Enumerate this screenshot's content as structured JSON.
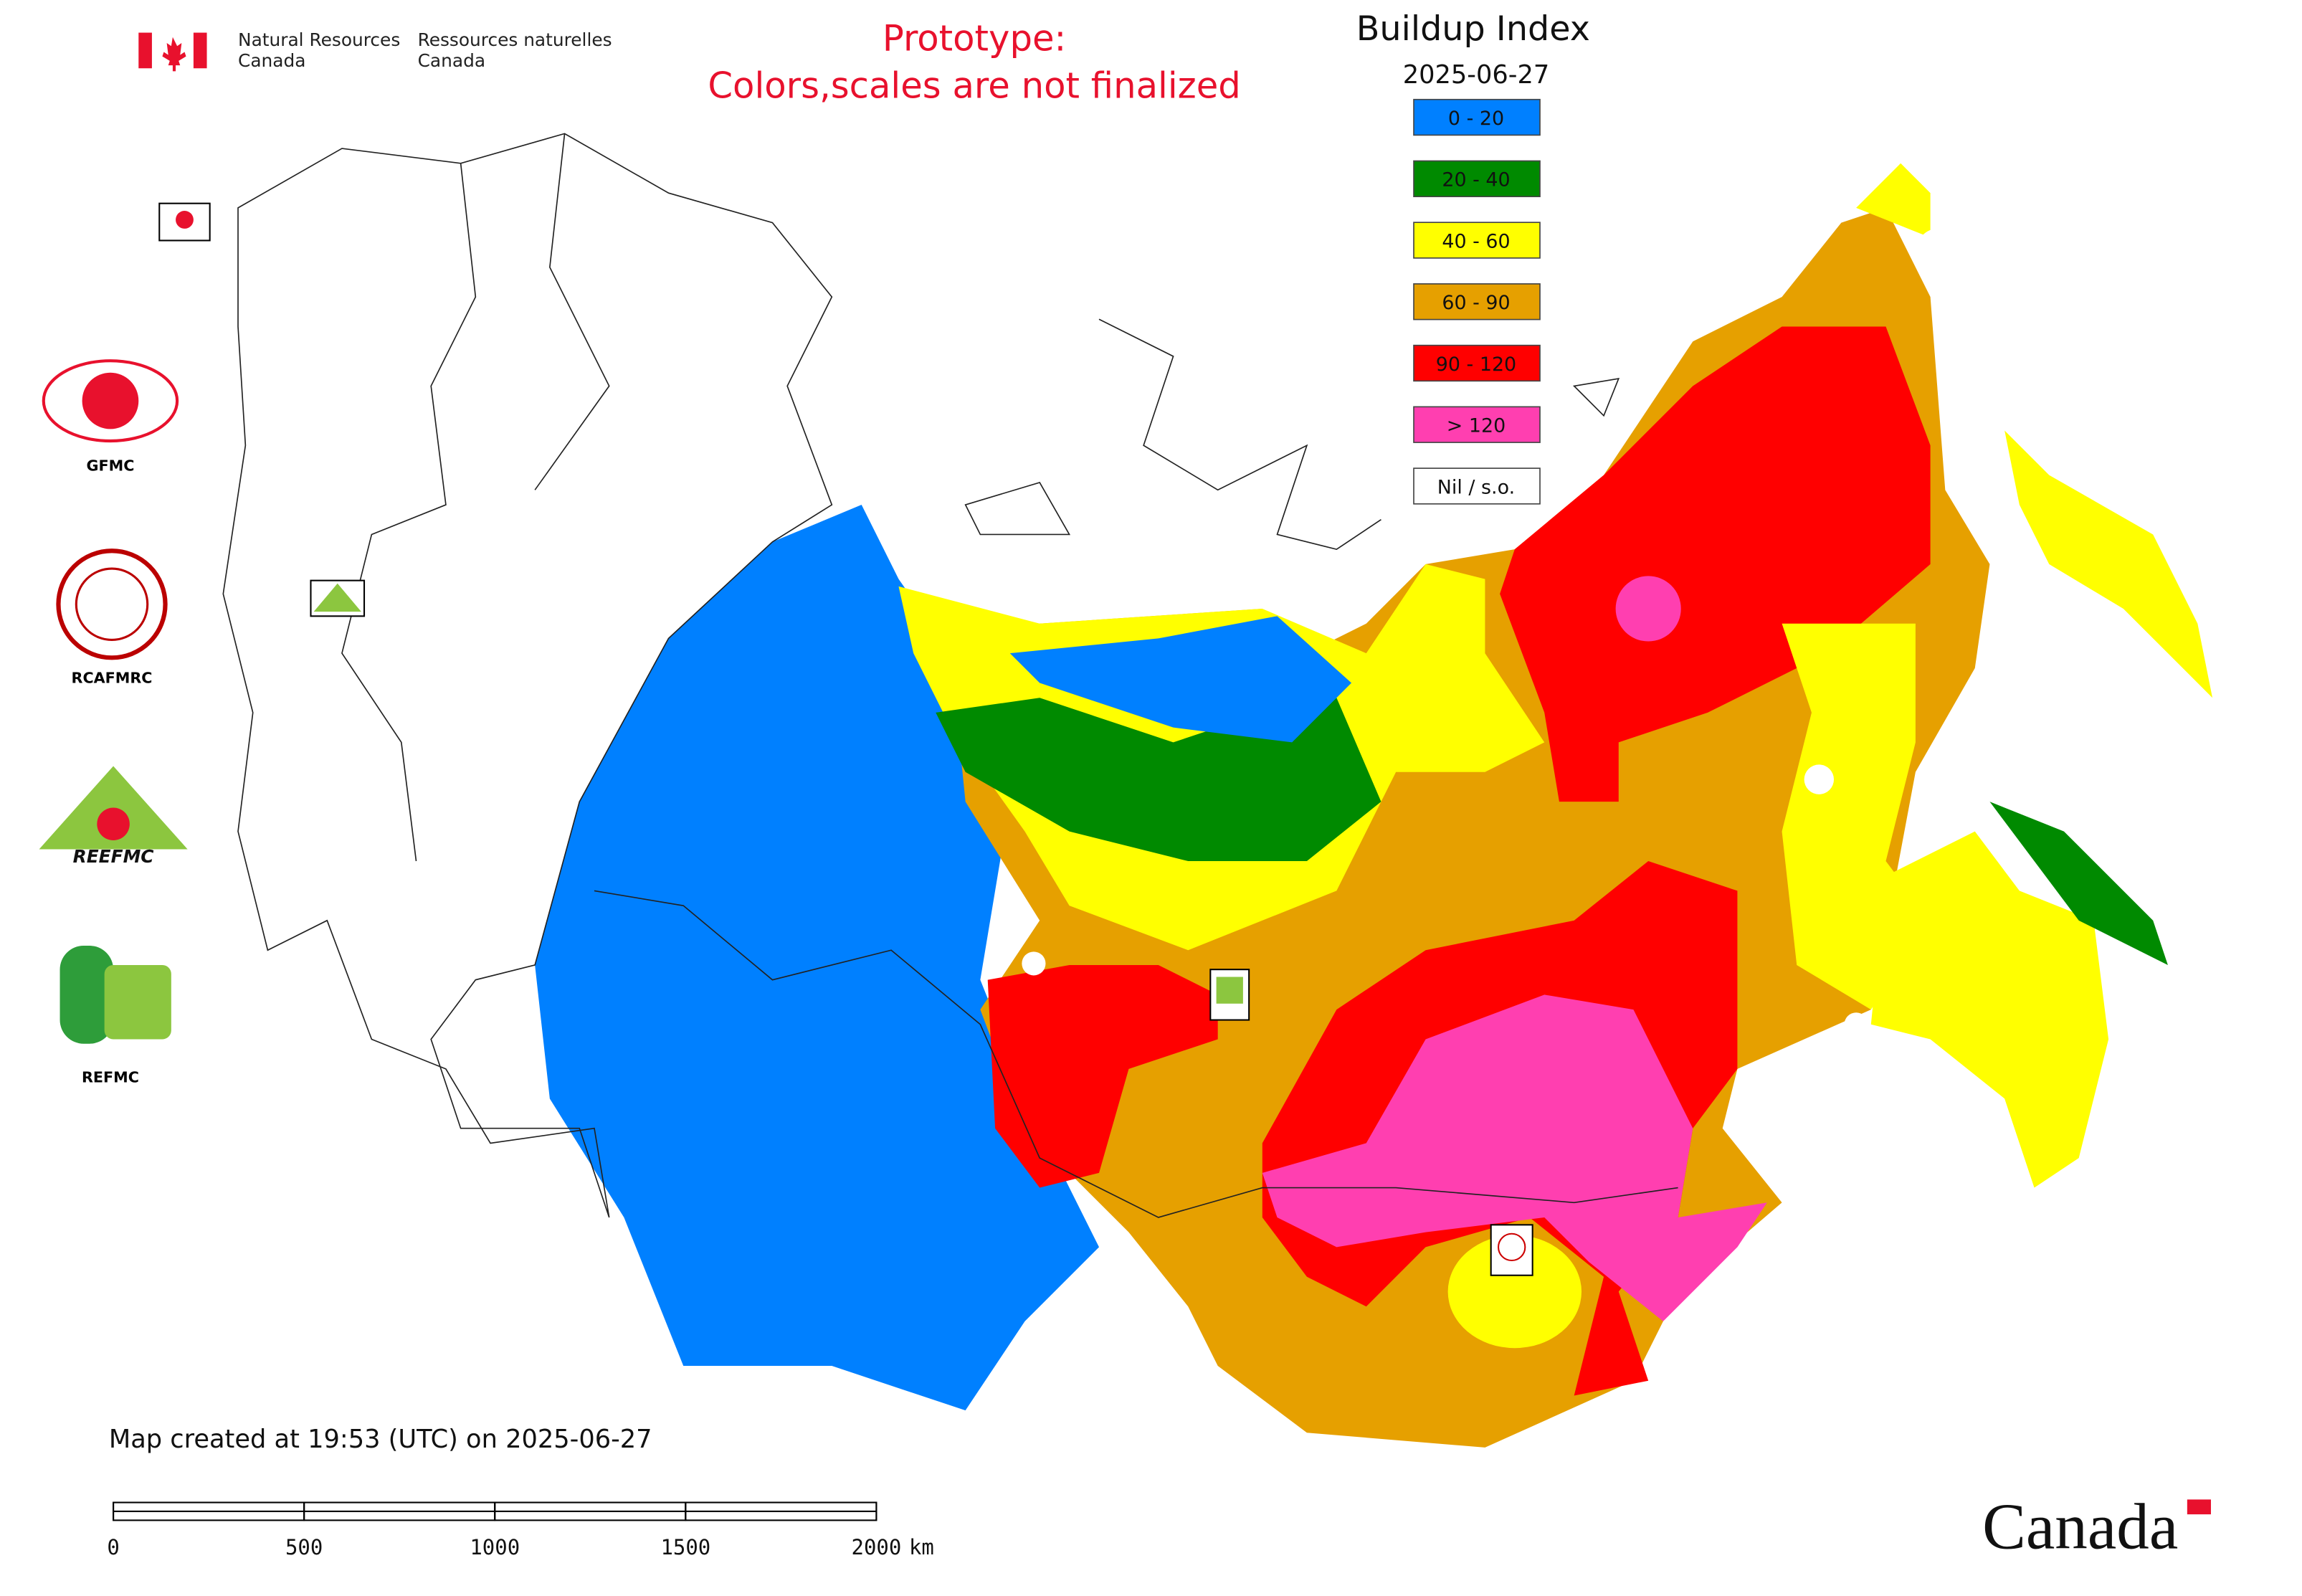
{
  "header": {
    "agency_en": [
      "Natural Resources",
      "Canada"
    ],
    "agency_fr": [
      "Ressources naturelles",
      "Canada"
    ],
    "prototype_note": [
      "Prototype:",
      "Colors,scales are not finalized"
    ]
  },
  "legend": {
    "title": "Buildup Index",
    "date": "2025-06-27",
    "items": [
      {
        "label": "0 - 20",
        "color": "#0080ff"
      },
      {
        "label": "20 - 40",
        "color": "#008a00"
      },
      {
        "label": "40 - 60",
        "color": "#ffff00"
      },
      {
        "label": "60 - 90",
        "color": "#e6a000"
      },
      {
        "label": "90 - 120",
        "color": "#ff0000"
      },
      {
        "label": "> 120",
        "color": "#ff3fb0"
      },
      {
        "label": "Nil / s.o.",
        "color": "#ffffff"
      }
    ]
  },
  "logos": [
    "GFMC",
    "RCAFMRC",
    "REEFMC",
    "REFMC"
  ],
  "footer": {
    "created": "Map created at 19:53 (UTC) on 2025-06-27",
    "wordmark": "Canada"
  },
  "scale_bar": {
    "ticks": [
      0,
      500,
      1000,
      1500,
      2000
    ],
    "unit": "km"
  }
}
